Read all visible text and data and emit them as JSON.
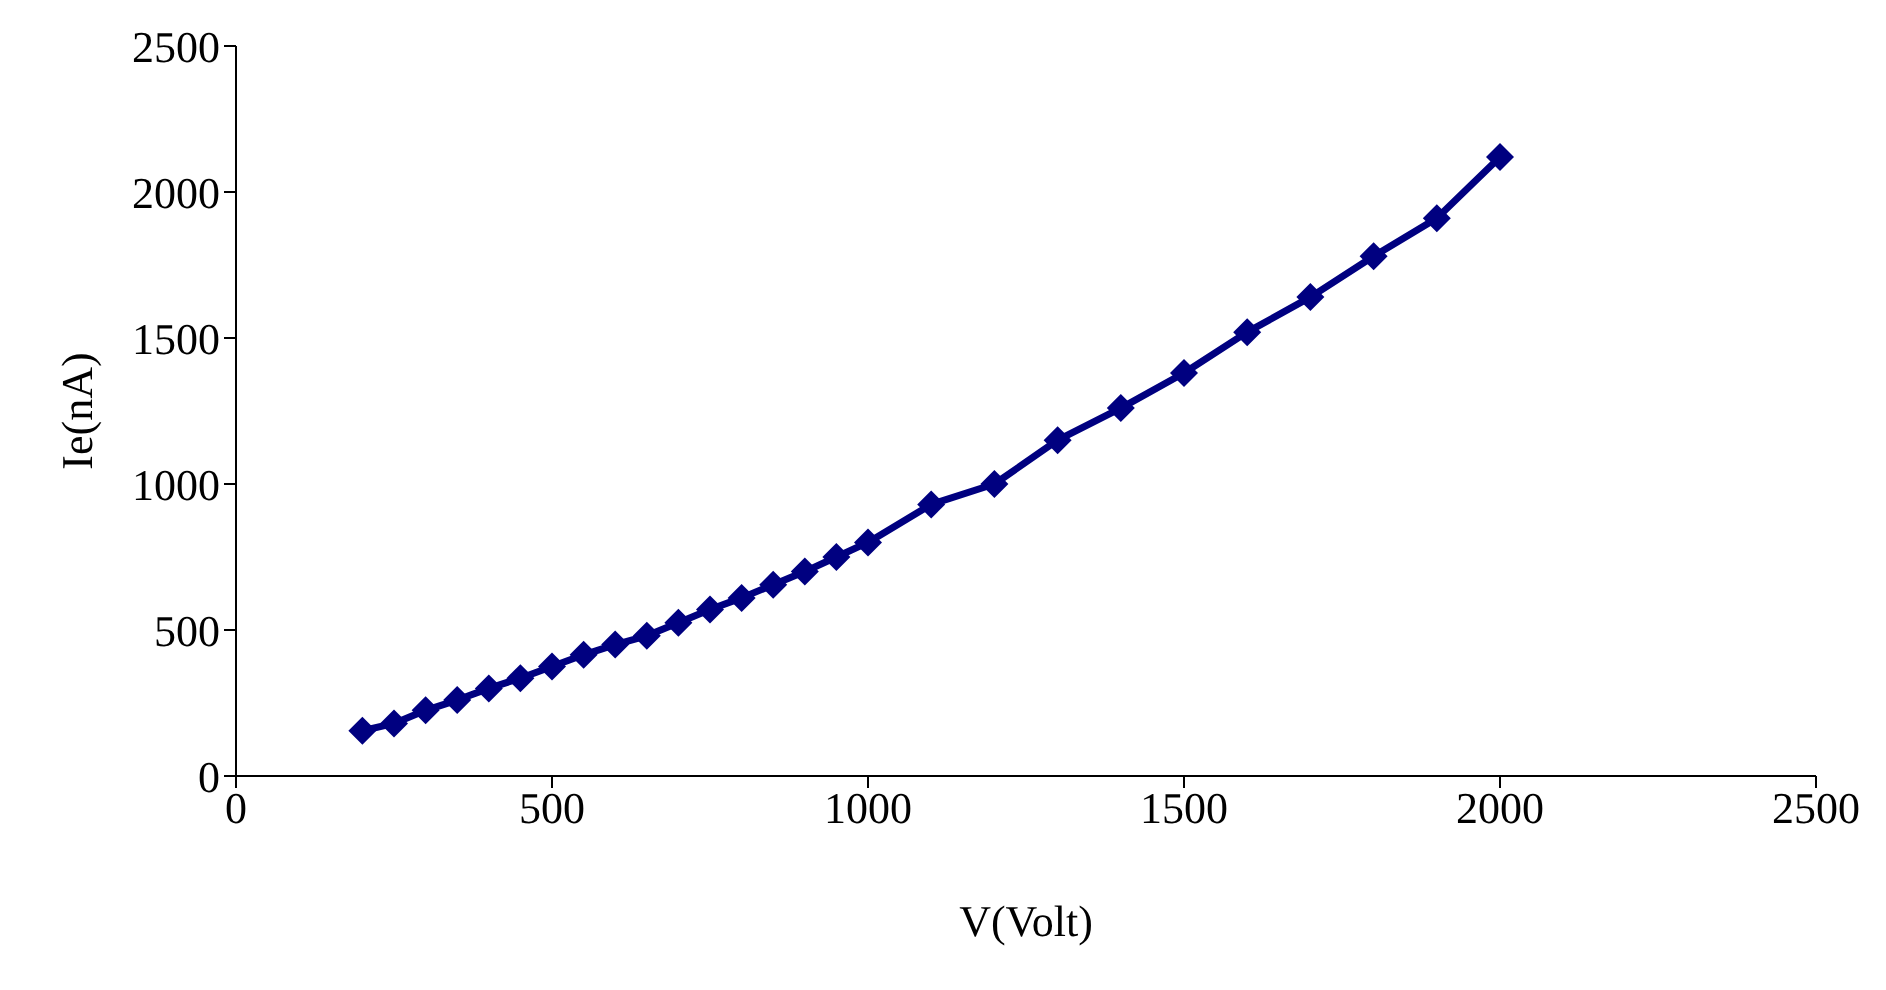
{
  "chart_data": {
    "type": "line",
    "xlabel": "V(Volt)",
    "ylabel": "Ie(nA)",
    "x": [
      200,
      250,
      300,
      350,
      400,
      450,
      500,
      550,
      600,
      650,
      700,
      750,
      800,
      850,
      900,
      950,
      1000,
      1100,
      1200,
      1300,
      1400,
      1500,
      1600,
      1700,
      1800,
      1900,
      2000
    ],
    "series": [
      {
        "color": "#000080",
        "values": [
          155,
          180,
          225,
          260,
          300,
          335,
          375,
          415,
          450,
          480,
          525,
          570,
          610,
          655,
          700,
          750,
          800,
          930,
          1000,
          1150,
          1260,
          1380,
          1520,
          1640,
          1780,
          1910,
          2120
        ]
      }
    ],
    "xlim": [
      0,
      2500
    ],
    "xticks": [
      0,
      500,
      1000,
      1500,
      2000,
      2500
    ],
    "ylim": [
      0,
      2500
    ],
    "yticks": [
      0,
      500,
      1000,
      1500,
      2000,
      2500
    ],
    "marker": "diamond",
    "line_style": "solid",
    "grid": false,
    "legend": false
  }
}
